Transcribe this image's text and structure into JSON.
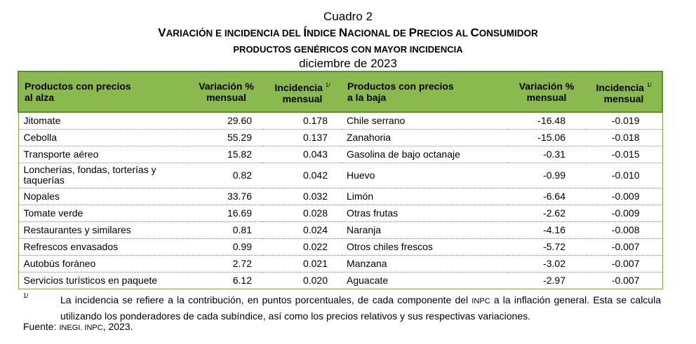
{
  "caption": {
    "label": "Cuadro 2",
    "title_parts": [
      {
        "text": "V",
        "sc": false
      },
      {
        "text": "ARIACIÓN E INCIDENCIA DEL ",
        "sc": true
      },
      {
        "text": "Í",
        "sc": false
      },
      {
        "text": "NDICE ",
        "sc": true
      },
      {
        "text": "N",
        "sc": false
      },
      {
        "text": "ACIONAL DE ",
        "sc": true
      },
      {
        "text": "P",
        "sc": false
      },
      {
        "text": "RECIOS AL ",
        "sc": true
      },
      {
        "text": "C",
        "sc": false
      },
      {
        "text": "ONSUMIDOR",
        "sc": true
      }
    ],
    "subtitle": "PRODUCTOS GENÉRICOS CON MAYOR INCIDENCIA",
    "date": "diciembre de 2023"
  },
  "table": {
    "headers": {
      "up_product_line1": "Productos con precios",
      "up_product_line2": "al alza",
      "up_var_line1": "Variación %",
      "up_var_line2": "mensual",
      "up_inc_line1": "Incidencia",
      "up_inc_sup": "1/",
      "up_inc_line2": "mensual",
      "down_product_line1": "Productos con precios",
      "down_product_line2": "a la baja",
      "down_var_line1": "Variación %",
      "down_var_line2": "mensual",
      "down_inc_line1": "Incidencia",
      "down_inc_sup": "1/",
      "down_inc_line2": "mensual"
    },
    "rows": [
      {
        "up_product": "Jitomate",
        "up_var": "29.60",
        "up_inc": "0.178",
        "down_product": "Chile serrano",
        "down_var": "-16.48",
        "down_inc": "-0.019"
      },
      {
        "up_product": "Cebolla",
        "up_var": "55.29",
        "up_inc": "0.137",
        "down_product": "Zanahoria",
        "down_var": "-15.06",
        "down_inc": "-0.018"
      },
      {
        "up_product": "Transporte aéreo",
        "up_var": "15.82",
        "up_inc": "0.043",
        "down_product": "Gasolina de bajo octanaje",
        "down_var": "-0.31",
        "down_inc": "-0.015"
      },
      {
        "up_product": "Loncherías, fondas, torterías y taquerías",
        "up_var": "0.82",
        "up_inc": "0.042",
        "down_product": "Huevo",
        "down_var": "-0.99",
        "down_inc": "-0.010"
      },
      {
        "up_product": "Nopales",
        "up_var": "33.76",
        "up_inc": "0.032",
        "down_product": "Limón",
        "down_var": "-6.64",
        "down_inc": "-0.009"
      },
      {
        "up_product": "Tomate verde",
        "up_var": "16.69",
        "up_inc": "0.028",
        "down_product": "Otras frutas",
        "down_var": "-2.62",
        "down_inc": "-0.009"
      },
      {
        "up_product": "Restaurantes y similares",
        "up_var": "0.81",
        "up_inc": "0.024",
        "down_product": "Naranja",
        "down_var": "-4.16",
        "down_inc": "-0.008"
      },
      {
        "up_product": "Refrescos envasados",
        "up_var": "0.99",
        "up_inc": "0.022",
        "down_product": "Otros chiles frescos",
        "down_var": "-5.72",
        "down_inc": "-0.007"
      },
      {
        "up_product": "Autobús foráneo",
        "up_var": "2.72",
        "up_inc": "0.021",
        "down_product": "Manzana",
        "down_var": "-3.02",
        "down_inc": "-0.007"
      },
      {
        "up_product": "Servicios turísticos en paquete",
        "up_var": "6.12",
        "up_inc": "0.020",
        "down_product": "Aguacate",
        "down_var": "-2.97",
        "down_inc": "-0.007"
      }
    ]
  },
  "footnote": {
    "mark": "1/",
    "text_before": "La incidencia se refiere a la contribución, en puntos porcentuales, de cada componente del ",
    "text_sc": "INPC",
    "text_after": " a la inflación general. Esta se calcula utilizando los ponderadores de cada subíndice, así como los precios relativos y sus respectivas variaciones."
  },
  "source": {
    "prefix": "Fuente: ",
    "org": "INEGI. INPC",
    "year": ", 2023."
  },
  "colors": {
    "header_bg": "#8aba4f",
    "header_border": "#5c8e2c"
  }
}
